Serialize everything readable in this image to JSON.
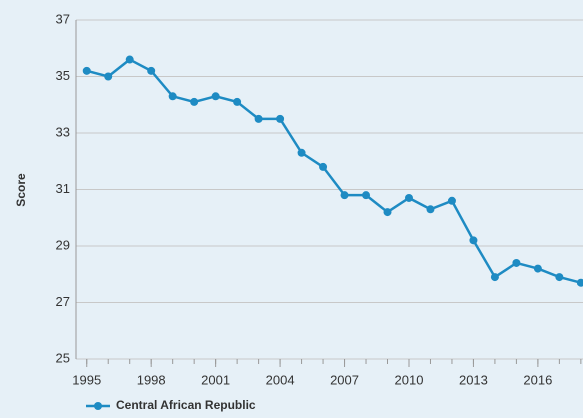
{
  "chart_data": {
    "type": "line",
    "y_label": "Score",
    "x": [
      1995,
      1996,
      1997,
      1998,
      1999,
      2000,
      2001,
      2002,
      2003,
      2004,
      2005,
      2006,
      2007,
      2008,
      2009,
      2010,
      2011,
      2012,
      2013,
      2014,
      2015,
      2016,
      2017,
      2018
    ],
    "series": [
      {
        "name": "Central African Republic",
        "color": "#1e8bc3",
        "values": [
          35.2,
          35.0,
          35.6,
          35.2,
          34.3,
          34.1,
          34.3,
          34.1,
          33.5,
          33.5,
          32.3,
          31.8,
          30.8,
          30.8,
          30.2,
          30.7,
          30.3,
          30.6,
          29.2,
          27.9,
          28.4,
          28.2,
          27.9,
          27.7
        ]
      }
    ],
    "xlim": [
      1994.5,
      2018.1
    ],
    "xticks": [
      1995,
      1998,
      2001,
      2004,
      2007,
      2010,
      2013,
      2016
    ],
    "ylim": [
      25,
      37
    ],
    "yticks": [
      25,
      27,
      29,
      31,
      33,
      35,
      37
    ],
    "grid": true,
    "legend": "bottom-left"
  }
}
